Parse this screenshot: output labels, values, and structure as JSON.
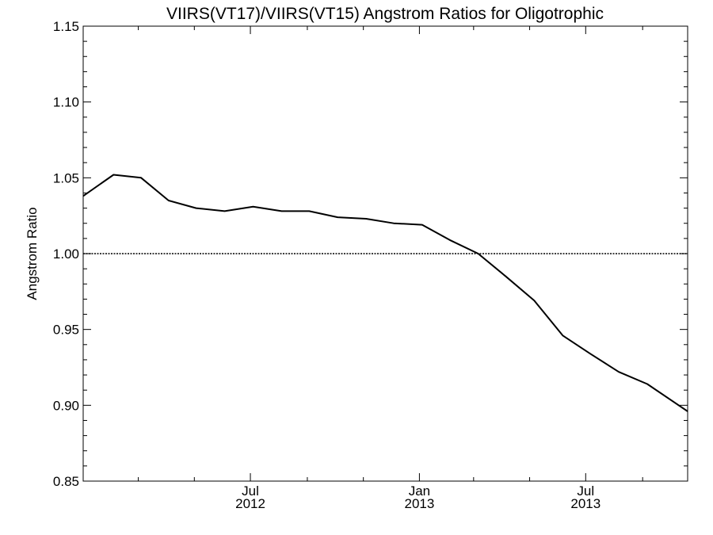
{
  "chart_data": {
    "type": "line",
    "title": "VIIRS(VT17)/VIIRS(VT15)  Angstrom Ratios for Oligotrophic",
    "xlabel": "",
    "ylabel": "Angstrom Ratio",
    "x_axis": "date",
    "xlim": [
      "2012-01-01",
      "2013-10-20"
    ],
    "ylim": [
      0.85,
      1.15
    ],
    "y_ticks": [
      {
        "value": 0.85,
        "label": "0.85"
      },
      {
        "value": 0.9,
        "label": "0.90"
      },
      {
        "value": 0.95,
        "label": "0.95"
      },
      {
        "value": 1.0,
        "label": "1.00"
      },
      {
        "value": 1.05,
        "label": "1.05"
      },
      {
        "value": 1.1,
        "label": "1.10"
      },
      {
        "value": 1.15,
        "label": "1.15"
      }
    ],
    "x_major_ticks": [
      {
        "date": "2012-07-01",
        "month": "Jul",
        "year": "2012"
      },
      {
        "date": "2013-01-01",
        "month": "Jan",
        "year": "2013"
      },
      {
        "date": "2013-07-01",
        "month": "Jul",
        "year": "2013"
      }
    ],
    "reference_line": 1.0,
    "grid": false,
    "series": [
      {
        "color": "#000000",
        "x": [
          "2012-01-01",
          "2012-02-03",
          "2012-03-04",
          "2012-04-03",
          "2012-05-03",
          "2012-06-03",
          "2012-07-04",
          "2012-08-04",
          "2012-09-03",
          "2012-10-04",
          "2012-11-04",
          "2012-12-04",
          "2013-01-04",
          "2013-02-03",
          "2013-03-06",
          "2013-04-05",
          "2013-05-06",
          "2013-06-06",
          "2013-07-06",
          "2013-08-06",
          "2013-09-06",
          "2013-10-20"
        ],
        "values": [
          1.038,
          1.052,
          1.05,
          1.035,
          1.03,
          1.028,
          1.031,
          1.028,
          1.028,
          1.024,
          1.023,
          1.02,
          1.019,
          1.009,
          1.0,
          0.985,
          0.969,
          0.946,
          0.934,
          0.922,
          0.914,
          0.896
        ]
      }
    ]
  }
}
